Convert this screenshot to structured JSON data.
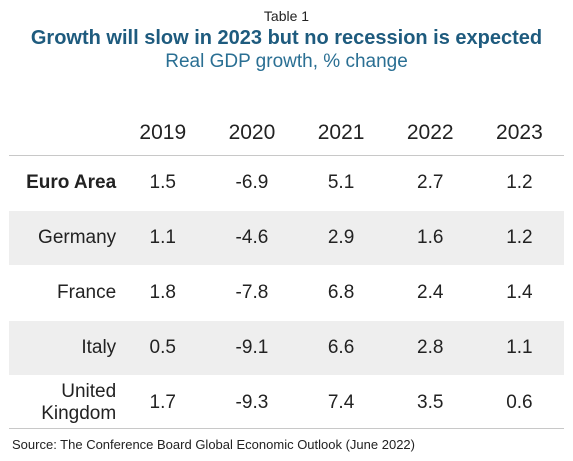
{
  "caption": "Table 1",
  "title": "Growth will slow in 2023 but no recession is expected",
  "subtitle": "Real GDP growth, % change",
  "columns": [
    "2019",
    "2020",
    "2021",
    "2022",
    "2023"
  ],
  "rows": [
    {
      "label": "Euro Area",
      "values": [
        "1.5",
        "-6.9",
        "5.1",
        "2.7",
        "1.2"
      ]
    },
    {
      "label": "Germany",
      "values": [
        "1.1",
        "-4.6",
        "2.9",
        "1.6",
        "1.2"
      ]
    },
    {
      "label": "France",
      "values": [
        "1.8",
        "-7.8",
        "6.8",
        "2.4",
        "1.4"
      ]
    },
    {
      "label": "Italy",
      "values": [
        "0.5",
        "-9.1",
        "6.6",
        "2.8",
        "1.1"
      ]
    },
    {
      "label": "United Kingdom",
      "values": [
        "1.7",
        "-9.3",
        "7.4",
        "3.5",
        "0.6"
      ]
    }
  ],
  "source": "Source: The Conference Board Global Economic Outlook (June 2022)"
}
